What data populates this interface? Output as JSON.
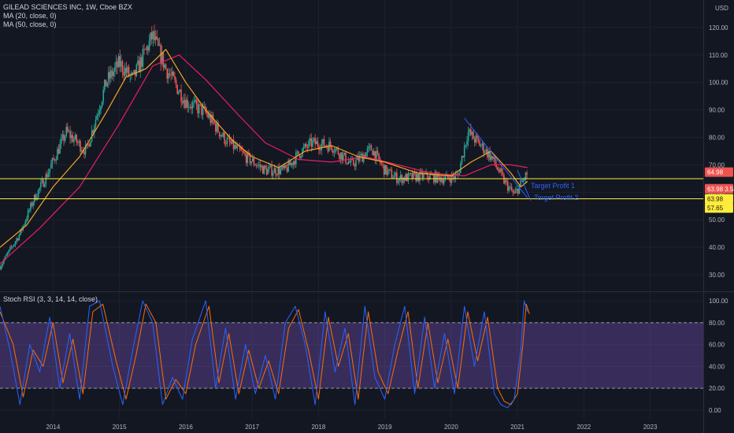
{
  "header": {
    "title": "GILEAD SCIENCES INC, 1W, Cboe BZX",
    "ma1": "MA (20, close, 0)",
    "ma2": "MA (50, close, 0)",
    "currency": "USD"
  },
  "indicator": {
    "title": "Stoch RSI (3, 3, 14, 14, close)"
  },
  "colors": {
    "background": "#131722",
    "up": "#ef5350",
    "down": "#26a69a",
    "ma20": "#f5a623",
    "ma50": "#e91e63",
    "level": "#ffeb3b",
    "trendline": "#2962ff",
    "stoch_k": "#2962ff",
    "stoch_d": "#ff6d00",
    "stoch_band": "#7e57c2"
  },
  "chart_data": [
    {
      "type": "candlestick",
      "title": "GILEAD SCIENCES INC, 1W, Cboe BZX",
      "ylabel": "USD",
      "x_ticks": [
        "2014",
        "2015",
        "2016",
        "2017",
        "2018",
        "2019",
        "2020",
        "2021",
        "2022",
        "2023"
      ],
      "y_ticks": [
        30,
        40,
        50,
        60,
        70,
        80,
        90,
        100,
        110,
        120
      ],
      "y_tick_labels": [
        "30.00",
        "40.00",
        "50.00",
        "60.00",
        "70.00",
        "80.00",
        "90.00",
        "100.00",
        "110.00",
        "120.00"
      ],
      "ylim": [
        24,
        130
      ],
      "xlim": [
        2013.2,
        2023.8
      ],
      "price_path": [
        {
          "x": 2013.2,
          "y": 33
        },
        {
          "x": 2013.5,
          "y": 45
        },
        {
          "x": 2013.7,
          "y": 57
        },
        {
          "x": 2013.9,
          "y": 66
        },
        {
          "x": 2014.2,
          "y": 82
        },
        {
          "x": 2014.5,
          "y": 75
        },
        {
          "x": 2014.8,
          "y": 100
        },
        {
          "x": 2015.0,
          "y": 107
        },
        {
          "x": 2015.2,
          "y": 101
        },
        {
          "x": 2015.5,
          "y": 117
        },
        {
          "x": 2015.7,
          "y": 105
        },
        {
          "x": 2016.0,
          "y": 93
        },
        {
          "x": 2016.3,
          "y": 89
        },
        {
          "x": 2016.6,
          "y": 79
        },
        {
          "x": 2016.9,
          "y": 73
        },
        {
          "x": 2017.2,
          "y": 68
        },
        {
          "x": 2017.5,
          "y": 68
        },
        {
          "x": 2017.7,
          "y": 74
        },
        {
          "x": 2017.9,
          "y": 78
        },
        {
          "x": 2018.2,
          "y": 77
        },
        {
          "x": 2018.5,
          "y": 70
        },
        {
          "x": 2018.8,
          "y": 76
        },
        {
          "x": 2019.0,
          "y": 68
        },
        {
          "x": 2019.2,
          "y": 65
        },
        {
          "x": 2019.6,
          "y": 66
        },
        {
          "x": 2019.9,
          "y": 65
        },
        {
          "x": 2020.1,
          "y": 66
        },
        {
          "x": 2020.25,
          "y": 82
        },
        {
          "x": 2020.45,
          "y": 77
        },
        {
          "x": 2020.6,
          "y": 73
        },
        {
          "x": 2020.8,
          "y": 64
        },
        {
          "x": 2020.95,
          "y": 59
        },
        {
          "x": 2021.05,
          "y": 63
        },
        {
          "x": 2021.15,
          "y": 67
        }
      ],
      "series": [
        {
          "name": "MA (20, close, 0)",
          "points": [
            {
              "x": 2013.2,
              "y": 40
            },
            {
              "x": 2013.6,
              "y": 48
            },
            {
              "x": 2014.0,
              "y": 62
            },
            {
              "x": 2014.4,
              "y": 73
            },
            {
              "x": 2014.8,
              "y": 89
            },
            {
              "x": 2015.1,
              "y": 102
            },
            {
              "x": 2015.4,
              "y": 105
            },
            {
              "x": 2015.7,
              "y": 112
            },
            {
              "x": 2016.0,
              "y": 100
            },
            {
              "x": 2016.3,
              "y": 90
            },
            {
              "x": 2016.7,
              "y": 79
            },
            {
              "x": 2017.0,
              "y": 73
            },
            {
              "x": 2017.4,
              "y": 69
            },
            {
              "x": 2017.8,
              "y": 75
            },
            {
              "x": 2018.2,
              "y": 77
            },
            {
              "x": 2018.6,
              "y": 73
            },
            {
              "x": 2019.0,
              "y": 71
            },
            {
              "x": 2019.5,
              "y": 67
            },
            {
              "x": 2020.0,
              "y": 66
            },
            {
              "x": 2020.3,
              "y": 71
            },
            {
              "x": 2020.6,
              "y": 75
            },
            {
              "x": 2020.9,
              "y": 67
            },
            {
              "x": 2021.05,
              "y": 62
            },
            {
              "x": 2021.15,
              "y": 64
            }
          ]
        },
        {
          "name": "MA (50, close, 0)",
          "points": [
            {
              "x": 2013.2,
              "y": 34
            },
            {
              "x": 2013.8,
              "y": 47
            },
            {
              "x": 2014.4,
              "y": 62
            },
            {
              "x": 2015.0,
              "y": 85
            },
            {
              "x": 2015.5,
              "y": 106
            },
            {
              "x": 2015.9,
              "y": 110
            },
            {
              "x": 2016.3,
              "y": 101
            },
            {
              "x": 2016.8,
              "y": 88
            },
            {
              "x": 2017.2,
              "y": 78
            },
            {
              "x": 2017.7,
              "y": 72
            },
            {
              "x": 2018.2,
              "y": 71
            },
            {
              "x": 2018.7,
              "y": 73
            },
            {
              "x": 2019.2,
              "y": 70
            },
            {
              "x": 2019.7,
              "y": 67
            },
            {
              "x": 2020.2,
              "y": 66
            },
            {
              "x": 2020.6,
              "y": 70
            },
            {
              "x": 2020.9,
              "y": 70
            },
            {
              "x": 2021.15,
              "y": 69
            }
          ]
        }
      ],
      "levels": [
        {
          "value": 64.98,
          "label": "64.98"
        },
        {
          "value": 57.65,
          "label": "57.65"
        }
      ],
      "price_badges": [
        {
          "value": 67.38,
          "label": "64.98",
          "color": "#ef5350"
        },
        {
          "value": 61.3,
          "label": "63.98 3.58",
          "color": "#ef5350"
        },
        {
          "value": 57.65,
          "label": "63.98",
          "color": "#ffeb3b"
        },
        {
          "value": 54.3,
          "label": "57.65",
          "color": "#ffeb3b"
        }
      ],
      "trendline": {
        "x1": 2020.2,
        "y1": 87,
        "x2": 2021.15,
        "y2": 58
      },
      "annotations": [
        {
          "text": "Target Profit 1",
          "x": 2021.2,
          "y": 61.6
        },
        {
          "text": "Target Profit 2",
          "x": 2021.25,
          "y": 57.2
        }
      ]
    },
    {
      "type": "line",
      "title": "Stoch RSI (3, 3, 14, 14, close)",
      "y_ticks": [
        0,
        20,
        40,
        60,
        80,
        100
      ],
      "y_tick_labels": [
        "0.00",
        "20.00",
        "40.00",
        "60.00",
        "80.00",
        "100.00"
      ],
      "ylim": [
        -8,
        108
      ],
      "band": [
        20,
        80
      ],
      "series": [
        {
          "name": "K",
          "points": [
            {
              "x": 2013.2,
              "y": 95
            },
            {
              "x": 2013.35,
              "y": 55
            },
            {
              "x": 2013.5,
              "y": 5
            },
            {
              "x": 2013.65,
              "y": 60
            },
            {
              "x": 2013.8,
              "y": 35
            },
            {
              "x": 2013.95,
              "y": 85
            },
            {
              "x": 2014.1,
              "y": 20
            },
            {
              "x": 2014.25,
              "y": 70
            },
            {
              "x": 2014.4,
              "y": 10
            },
            {
              "x": 2014.55,
              "y": 95
            },
            {
              "x": 2014.7,
              "y": 100
            },
            {
              "x": 2014.9,
              "y": 40
            },
            {
              "x": 2015.05,
              "y": 5
            },
            {
              "x": 2015.2,
              "y": 55
            },
            {
              "x": 2015.35,
              "y": 100
            },
            {
              "x": 2015.5,
              "y": 80
            },
            {
              "x": 2015.65,
              "y": 5
            },
            {
              "x": 2015.8,
              "y": 30
            },
            {
              "x": 2015.95,
              "y": 10
            },
            {
              "x": 2016.1,
              "y": 65
            },
            {
              "x": 2016.3,
              "y": 100
            },
            {
              "x": 2016.45,
              "y": 20
            },
            {
              "x": 2016.6,
              "y": 75
            },
            {
              "x": 2016.75,
              "y": 10
            },
            {
              "x": 2016.9,
              "y": 60
            },
            {
              "x": 2017.05,
              "y": 15
            },
            {
              "x": 2017.2,
              "y": 50
            },
            {
              "x": 2017.35,
              "y": 10
            },
            {
              "x": 2017.5,
              "y": 80
            },
            {
              "x": 2017.65,
              "y": 95
            },
            {
              "x": 2017.8,
              "y": 60
            },
            {
              "x": 2017.95,
              "y": 5
            },
            {
              "x": 2018.1,
              "y": 90
            },
            {
              "x": 2018.25,
              "y": 35
            },
            {
              "x": 2018.4,
              "y": 75
            },
            {
              "x": 2018.55,
              "y": 5
            },
            {
              "x": 2018.7,
              "y": 95
            },
            {
              "x": 2018.85,
              "y": 30
            },
            {
              "x": 2019.0,
              "y": 10
            },
            {
              "x": 2019.15,
              "y": 60
            },
            {
              "x": 2019.3,
              "y": 95
            },
            {
              "x": 2019.45,
              "y": 15
            },
            {
              "x": 2019.6,
              "y": 85
            },
            {
              "x": 2019.75,
              "y": 20
            },
            {
              "x": 2019.9,
              "y": 70
            },
            {
              "x": 2020.05,
              "y": 15
            },
            {
              "x": 2020.2,
              "y": 95
            },
            {
              "x": 2020.35,
              "y": 40
            },
            {
              "x": 2020.5,
              "y": 90
            },
            {
              "x": 2020.65,
              "y": 15
            },
            {
              "x": 2020.75,
              "y": 5
            },
            {
              "x": 2020.85,
              "y": 2
            },
            {
              "x": 2020.95,
              "y": 10
            },
            {
              "x": 2021.05,
              "y": 55
            },
            {
              "x": 2021.1,
              "y": 100
            },
            {
              "x": 2021.15,
              "y": 90
            }
          ]
        },
        {
          "name": "D",
          "points": [
            {
              "x": 2013.2,
              "y": 90
            },
            {
              "x": 2013.4,
              "y": 60
            },
            {
              "x": 2013.55,
              "y": 12
            },
            {
              "x": 2013.7,
              "y": 55
            },
            {
              "x": 2013.85,
              "y": 40
            },
            {
              "x": 2014.0,
              "y": 80
            },
            {
              "x": 2014.15,
              "y": 25
            },
            {
              "x": 2014.3,
              "y": 65
            },
            {
              "x": 2014.45,
              "y": 15
            },
            {
              "x": 2014.6,
              "y": 90
            },
            {
              "x": 2014.75,
              "y": 97
            },
            {
              "x": 2014.95,
              "y": 45
            },
            {
              "x": 2015.1,
              "y": 10
            },
            {
              "x": 2015.25,
              "y": 50
            },
            {
              "x": 2015.4,
              "y": 97
            },
            {
              "x": 2015.55,
              "y": 80
            },
            {
              "x": 2015.7,
              "y": 10
            },
            {
              "x": 2015.85,
              "y": 28
            },
            {
              "x": 2016.0,
              "y": 15
            },
            {
              "x": 2016.15,
              "y": 60
            },
            {
              "x": 2016.35,
              "y": 95
            },
            {
              "x": 2016.5,
              "y": 25
            },
            {
              "x": 2016.65,
              "y": 70
            },
            {
              "x": 2016.8,
              "y": 15
            },
            {
              "x": 2016.95,
              "y": 55
            },
            {
              "x": 2017.1,
              "y": 20
            },
            {
              "x": 2017.25,
              "y": 45
            },
            {
              "x": 2017.4,
              "y": 15
            },
            {
              "x": 2017.55,
              "y": 75
            },
            {
              "x": 2017.7,
              "y": 92
            },
            {
              "x": 2017.85,
              "y": 55
            },
            {
              "x": 2018.0,
              "y": 10
            },
            {
              "x": 2018.15,
              "y": 85
            },
            {
              "x": 2018.3,
              "y": 40
            },
            {
              "x": 2018.45,
              "y": 70
            },
            {
              "x": 2018.6,
              "y": 10
            },
            {
              "x": 2018.75,
              "y": 90
            },
            {
              "x": 2018.9,
              "y": 35
            },
            {
              "x": 2019.05,
              "y": 15
            },
            {
              "x": 2019.2,
              "y": 55
            },
            {
              "x": 2019.35,
              "y": 90
            },
            {
              "x": 2019.5,
              "y": 20
            },
            {
              "x": 2019.65,
              "y": 80
            },
            {
              "x": 2019.8,
              "y": 25
            },
            {
              "x": 2019.95,
              "y": 65
            },
            {
              "x": 2020.1,
              "y": 20
            },
            {
              "x": 2020.25,
              "y": 90
            },
            {
              "x": 2020.4,
              "y": 45
            },
            {
              "x": 2020.55,
              "y": 85
            },
            {
              "x": 2020.7,
              "y": 20
            },
            {
              "x": 2020.8,
              "y": 8
            },
            {
              "x": 2020.9,
              "y": 5
            },
            {
              "x": 2021.0,
              "y": 15
            },
            {
              "x": 2021.08,
              "y": 60
            },
            {
              "x": 2021.13,
              "y": 97
            },
            {
              "x": 2021.18,
              "y": 88
            }
          ]
        }
      ]
    }
  ]
}
